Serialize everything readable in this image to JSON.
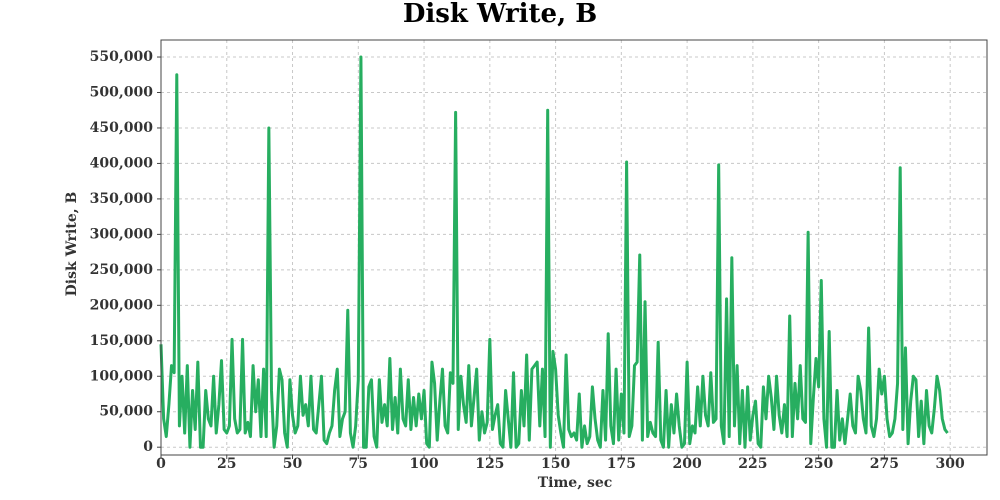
{
  "chart_data": {
    "type": "line",
    "title": "Disk Write, B",
    "xlabel": "Time, sec",
    "ylabel": "Disk Write, B",
    "x": [
      0,
      1,
      2,
      3,
      4,
      5,
      6,
      7,
      8,
      9,
      10,
      11,
      12,
      13,
      14,
      15,
      16,
      17,
      18,
      19,
      20,
      21,
      22,
      23,
      24,
      25,
      26,
      27,
      28,
      29,
      30,
      31,
      32,
      33,
      34,
      35,
      36,
      37,
      38,
      39,
      40,
      41,
      42,
      43,
      44,
      45,
      46,
      47,
      48,
      49,
      50,
      51,
      52,
      53,
      54,
      55,
      56,
      57,
      58,
      59,
      60,
      61,
      62,
      63,
      64,
      65,
      66,
      67,
      68,
      69,
      70,
      71,
      72,
      73,
      74,
      75,
      76,
      77,
      78,
      79,
      80,
      81,
      82,
      83,
      84,
      85,
      86,
      87,
      88,
      89,
      90,
      91,
      92,
      93,
      94,
      95,
      96,
      97,
      98,
      99,
      100,
      101,
      102,
      103,
      104,
      105,
      106,
      107,
      108,
      109,
      110,
      111,
      112,
      113,
      114,
      115,
      116,
      117,
      118,
      119,
      120,
      121,
      122,
      123,
      124,
      125,
      126,
      127,
      128,
      129,
      130,
      131,
      132,
      133,
      134,
      135,
      136,
      137,
      138,
      139,
      140,
      141,
      142,
      143,
      144,
      145,
      146,
      147,
      148,
      149,
      150,
      151,
      152,
      153,
      154,
      155,
      156,
      157,
      158,
      159,
      160,
      161,
      162,
      163,
      164,
      165,
      166,
      167,
      168,
      169,
      170,
      171,
      172,
      173,
      174,
      175,
      176,
      177,
      178,
      179,
      180,
      181,
      182,
      183,
      184,
      185,
      186,
      187,
      188,
      189,
      190,
      191,
      192,
      193,
      194,
      195,
      196,
      197,
      198,
      199,
      200,
      201,
      202,
      203,
      204,
      205,
      206,
      207,
      208,
      209,
      210,
      211,
      212,
      213,
      214,
      215,
      216,
      217,
      218,
      219,
      220,
      221,
      222,
      223,
      224,
      225,
      226,
      227,
      228,
      229,
      230,
      231,
      232,
      233,
      234,
      235,
      236,
      237,
      238,
      239,
      240,
      241,
      242,
      243,
      244,
      245,
      246,
      247,
      248,
      249,
      250,
      251,
      252,
      253,
      254,
      255,
      256,
      257,
      258,
      259,
      260,
      261,
      262,
      263,
      264,
      265,
      266,
      267,
      268,
      269,
      270,
      271,
      272,
      273,
      274,
      275,
      276,
      277,
      278,
      279,
      280,
      281,
      282,
      283,
      284,
      285,
      286,
      287,
      288,
      289,
      290,
      291,
      292,
      293,
      294,
      295,
      296,
      297,
      298,
      299
    ],
    "series": [
      {
        "name": "Disk Write, B",
        "color": "#27ae60",
        "values": [
          145000,
          40000,
          15000,
          60000,
          115000,
          105000,
          525000,
          30000,
          100000,
          20000,
          115000,
          0,
          80000,
          25000,
          120000,
          0,
          0,
          80000,
          40000,
          30000,
          100000,
          20000,
          60000,
          122000,
          25000,
          20000,
          30000,
          152000,
          40000,
          20000,
          25000,
          152000,
          20000,
          35000,
          15000,
          115000,
          50000,
          95000,
          15000,
          110000,
          15000,
          450000,
          80000,
          0,
          30000,
          110000,
          95000,
          20000,
          0,
          95000,
          45000,
          20000,
          30000,
          100000,
          45000,
          60000,
          30000,
          100000,
          25000,
          20000,
          60000,
          100000,
          10000,
          5000,
          20000,
          30000,
          80000,
          110000,
          15000,
          40000,
          50000,
          193000,
          20000,
          0,
          30000,
          95000,
          550000,
          0,
          0,
          85000,
          95000,
          15000,
          0,
          95000,
          35000,
          60000,
          30000,
          125000,
          25000,
          70000,
          20000,
          110000,
          40000,
          30000,
          95000,
          25000,
          70000,
          30000,
          75000,
          40000,
          80000,
          5000,
          0,
          120000,
          90000,
          10000,
          65000,
          110000,
          30000,
          20000,
          105000,
          90000,
          472000,
          25000,
          100000,
          60000,
          35000,
          115000,
          30000,
          70000,
          110000,
          10000,
          50000,
          20000,
          35000,
          152000,
          25000,
          45000,
          60000,
          5000,
          0,
          80000,
          40000,
          0,
          105000,
          0,
          5000,
          80000,
          30000,
          130000,
          10000,
          110000,
          115000,
          120000,
          30000,
          110000,
          15000,
          475000,
          0,
          135000,
          110000,
          45000,
          20000,
          0,
          130000,
          25000,
          15000,
          20000,
          10000,
          75000,
          0,
          30000,
          5000,
          15000,
          85000,
          40000,
          10000,
          0,
          80000,
          10000,
          160000,
          30000,
          5000,
          110000,
          10000,
          75000,
          20000,
          402000,
          15000,
          30000,
          115000,
          120000,
          271000,
          10000,
          205000,
          15000,
          35000,
          20000,
          15000,
          148000,
          10000,
          0,
          80000,
          0,
          60000,
          20000,
          75000,
          30000,
          0,
          5000,
          120000,
          5000,
          30000,
          20000,
          85000,
          30000,
          100000,
          45000,
          30000,
          105000,
          35000,
          40000,
          398000,
          30000,
          5000,
          209000,
          15000,
          267000,
          30000,
          115000,
          5000,
          80000,
          0,
          85000,
          10000,
          45000,
          65000,
          5000,
          0,
          85000,
          40000,
          100000,
          70000,
          25000,
          100000,
          45000,
          20000,
          60000,
          15000,
          185000,
          15000,
          90000,
          40000,
          115000,
          40000,
          35000,
          303000,
          5000,
          70000,
          125000,
          85000,
          235000,
          40000,
          0,
          163000,
          0,
          0,
          80000,
          10000,
          40000,
          5000,
          40000,
          75000,
          30000,
          20000,
          100000,
          80000,
          40000,
          20000,
          168000,
          30000,
          15000,
          40000,
          110000,
          75000,
          100000,
          40000,
          15000,
          20000,
          40000,
          90000,
          394000,
          25000,
          140000,
          5000,
          65000,
          100000,
          95000,
          15000,
          65000,
          5000,
          80000,
          30000,
          20000,
          55000,
          100000,
          80000,
          40000,
          25000,
          20000
        ]
      }
    ],
    "xlim": [
      0,
      314
    ],
    "ylim": [
      -11000,
      574000
    ],
    "xticks": [
      0,
      25,
      50,
      75,
      100,
      125,
      150,
      175,
      200,
      225,
      250,
      275,
      300
    ],
    "yticks": [
      0,
      {
        "value": 50000,
        "label": "50,000"
      },
      {
        "value": 100000,
        "label": "100,000"
      },
      {
        "value": 150000,
        "label": "150,000"
      },
      {
        "value": 200000,
        "label": "200,000"
      },
      {
        "value": 250000,
        "label": "250,000"
      },
      {
        "value": 300000,
        "label": "300,000"
      },
      {
        "value": 350000,
        "label": "350,000"
      },
      {
        "value": 400000,
        "label": "400,000"
      },
      {
        "value": 450000,
        "label": "450,000"
      },
      {
        "value": 500000,
        "label": "500,000"
      },
      {
        "value": 550000,
        "label": "550,000"
      }
    ],
    "grid": true
  }
}
